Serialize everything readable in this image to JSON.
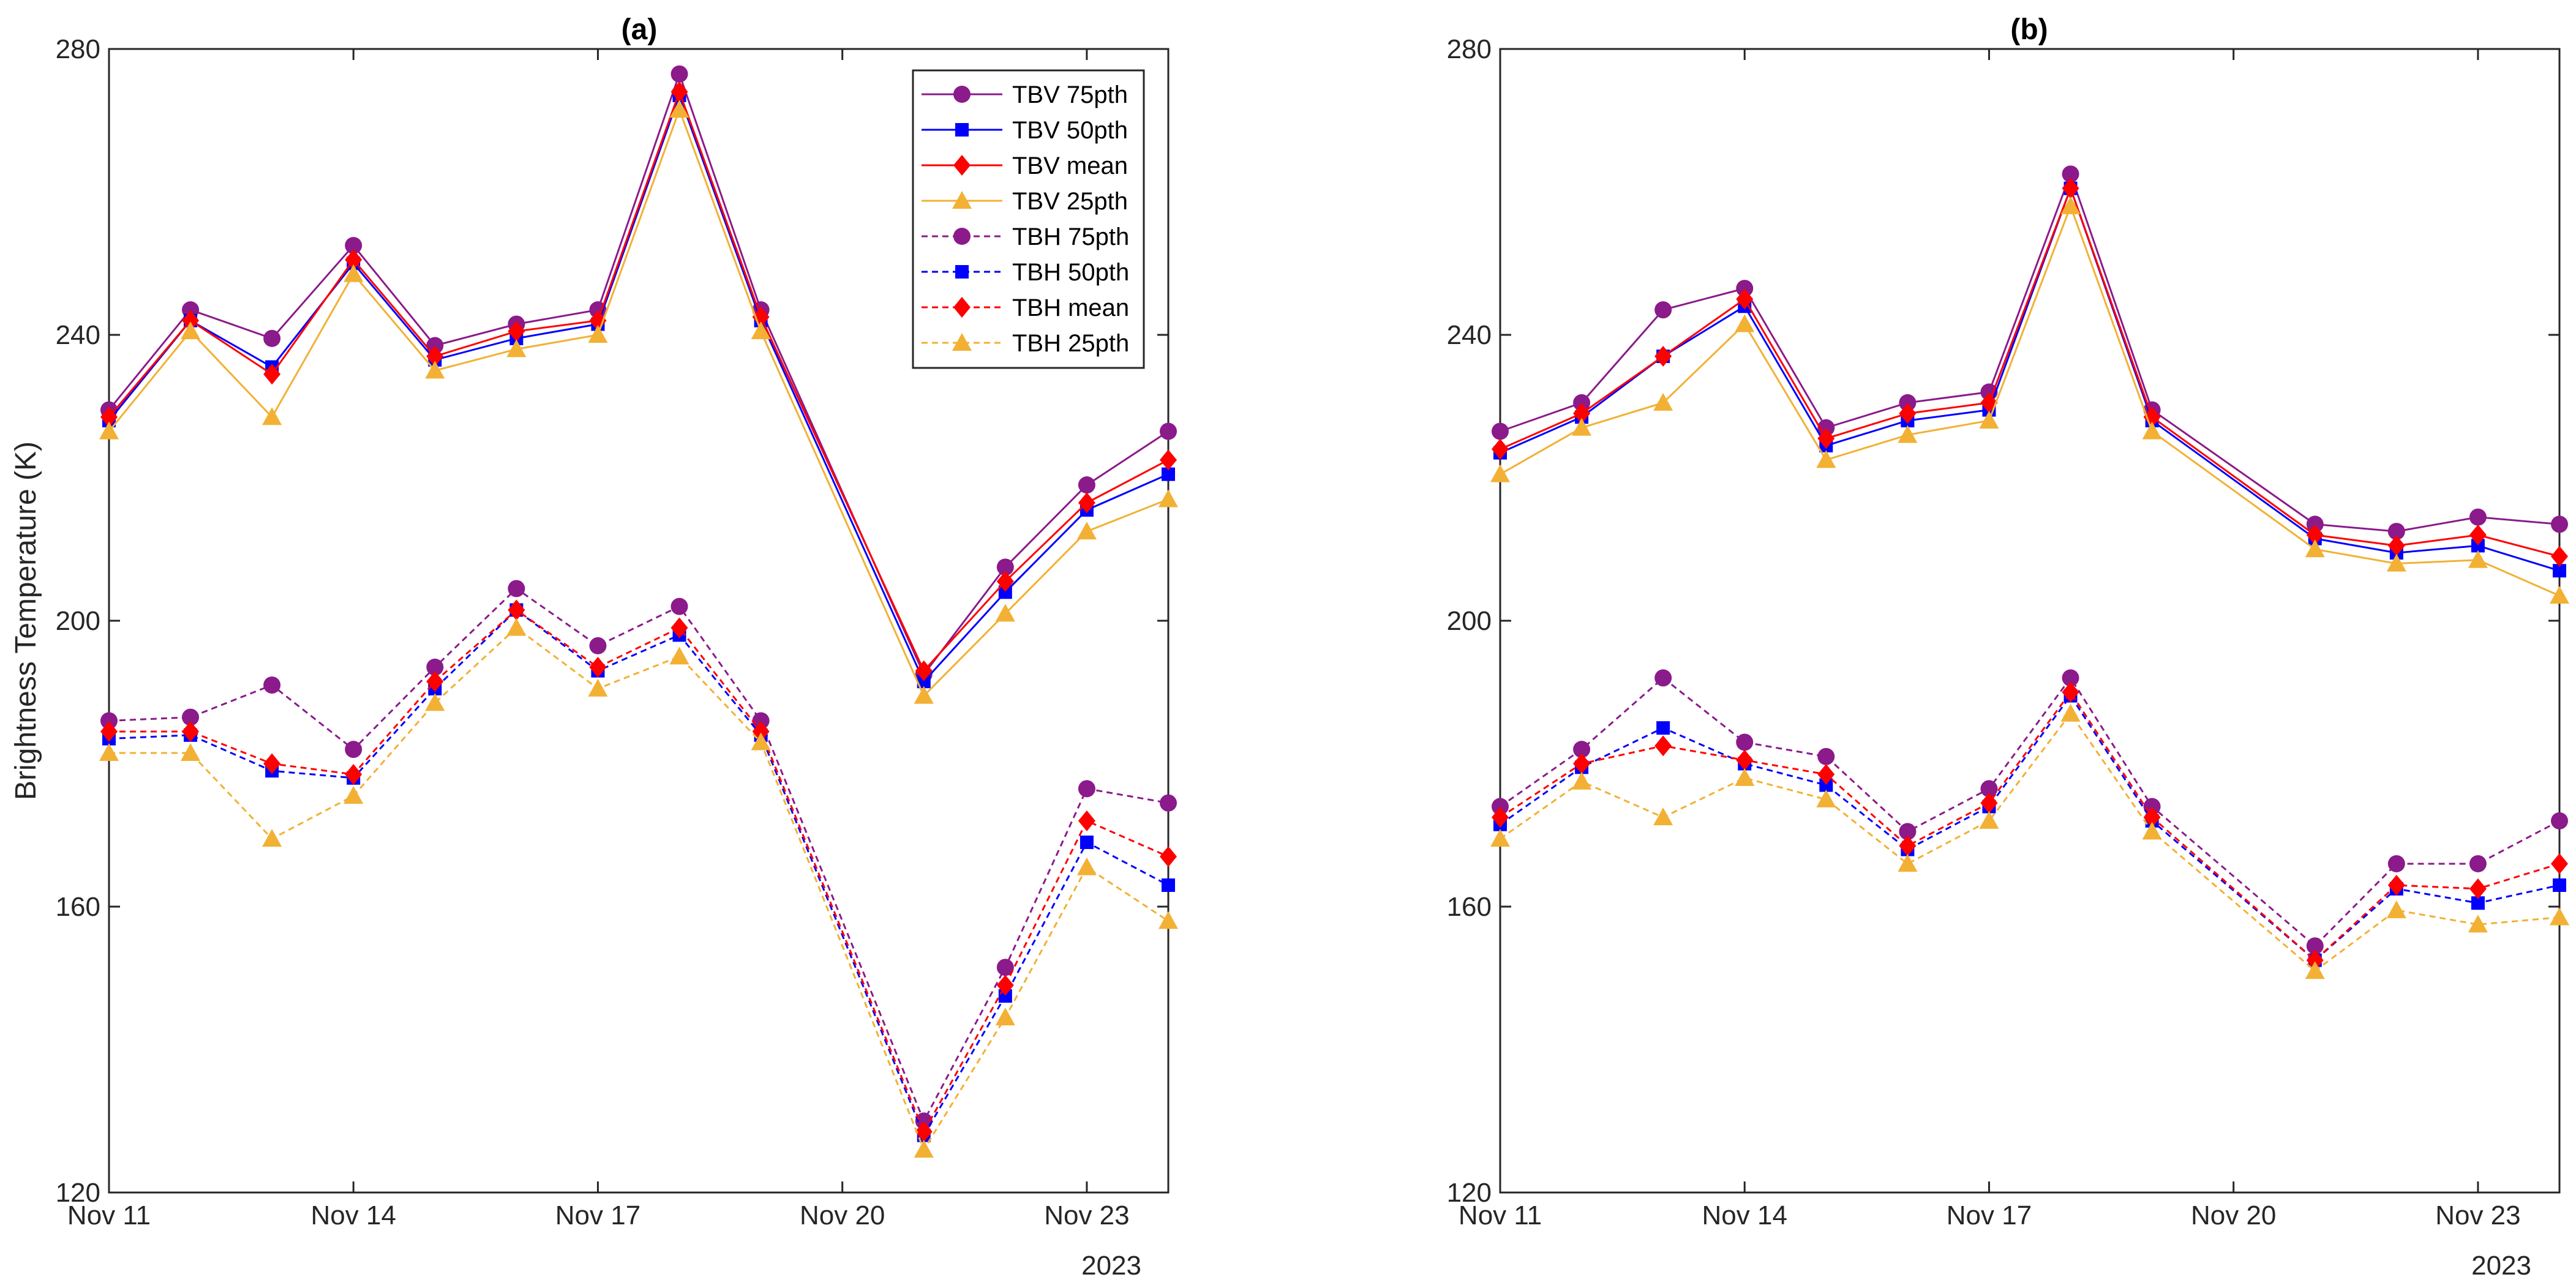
{
  "chart_data": [
    {
      "type": "line",
      "title": "(a)",
      "xlabel": "",
      "ylabel": "Brightness Temperature (K)",
      "ylim": [
        120,
        280
      ],
      "yticks": [
        120,
        160,
        200,
        240,
        280
      ],
      "xlim": [
        "2023-11-11",
        "2023-11-24"
      ],
      "xticks": [
        "Nov 11",
        "Nov 14",
        "Nov 17",
        "Nov 20",
        "Nov 23"
      ],
      "x_secondary_label": "2023",
      "grid": false,
      "x": [
        "Nov 11",
        "Nov 12",
        "Nov 13",
        "Nov 14",
        "Nov 15",
        "Nov 16",
        "Nov 17",
        "Nov 18",
        "Nov 19",
        "Nov 21",
        "Nov 22",
        "Nov 23",
        "Nov 24"
      ],
      "series": [
        {
          "name": "TBV 75pth",
          "values": [
            229.5,
            243.5,
            239.5,
            252.5,
            238.5,
            241.5,
            243.5,
            276.5,
            243.5,
            192.5,
            207.5,
            219.0,
            226.5
          ]
        },
        {
          "name": "TBV 50pth",
          "values": [
            228.0,
            242.0,
            235.5,
            250.0,
            236.5,
            239.5,
            241.5,
            273.5,
            242.0,
            191.5,
            204.0,
            215.5,
            220.5
          ]
        },
        {
          "name": "TBV mean",
          "values": [
            228.5,
            242.0,
            234.5,
            250.5,
            237.0,
            240.5,
            242.0,
            274.0,
            242.5,
            193.0,
            205.5,
            216.5,
            222.5
          ]
        },
        {
          "name": "TBV 25pth",
          "values": [
            226.5,
            240.5,
            228.5,
            248.5,
            235.0,
            238.0,
            240.0,
            271.5,
            240.5,
            189.5,
            201.0,
            212.5,
            217.0
          ]
        },
        {
          "name": "TBH 75pth",
          "values": [
            186.0,
            186.5,
            191.0,
            182.0,
            193.5,
            204.5,
            196.5,
            202.0,
            186.0,
            130.0,
            151.5,
            176.5,
            174.5
          ]
        },
        {
          "name": "TBH 50pth",
          "values": [
            183.5,
            184.0,
            179.0,
            178.0,
            190.5,
            201.5,
            193.0,
            198.0,
            184.0,
            128.0,
            147.5,
            169.0,
            163.0
          ]
        },
        {
          "name": "TBH mean",
          "values": [
            184.5,
            184.5,
            180.0,
            178.5,
            191.5,
            201.5,
            193.5,
            199.0,
            184.5,
            128.5,
            149.0,
            172.0,
            167.0
          ]
        },
        {
          "name": "TBH 25pth",
          "values": [
            181.5,
            181.5,
            169.5,
            175.5,
            188.5,
            199.0,
            190.5,
            195.0,
            183.0,
            126.0,
            144.5,
            165.5,
            158.0
          ]
        }
      ],
      "legend": {
        "position": "top-right",
        "entries": [
          "TBV 75pth",
          "TBV 50pth",
          "TBV mean",
          "TBV 25pth",
          "TBH 75pth",
          "TBH 50pth",
          "TBH mean",
          "TBH 25pth"
        ]
      }
    },
    {
      "type": "line",
      "title": "(b)",
      "xlabel": "",
      "ylabel": "",
      "ylim": [
        120,
        280
      ],
      "yticks": [
        120,
        160,
        200,
        240,
        280
      ],
      "xlim": [
        "2023-11-11",
        "2023-11-24"
      ],
      "xticks": [
        "Nov 11",
        "Nov 14",
        "Nov 17",
        "Nov 20",
        "Nov 23"
      ],
      "x_secondary_label": "2023",
      "grid": false,
      "x": [
        "Nov 11",
        "Nov 12",
        "Nov 13",
        "Nov 14",
        "Nov 15",
        "Nov 16",
        "Nov 17",
        "Nov 18",
        "Nov 19",
        "Nov 21",
        "Nov 22",
        "Nov 23",
        "Nov 24"
      ],
      "series": [
        {
          "name": "TBV 75pth",
          "values": [
            226.5,
            230.5,
            243.5,
            246.5,
            227.0,
            230.5,
            232.0,
            262.5,
            229.5,
            213.5,
            212.5,
            214.5,
            213.5
          ]
        },
        {
          "name": "TBV 50pth",
          "values": [
            223.5,
            228.5,
            237.0,
            244.0,
            224.5,
            228.0,
            229.5,
            260.5,
            228.0,
            211.5,
            209.5,
            210.5,
            207.0
          ]
        },
        {
          "name": "TBV mean",
          "values": [
            224.0,
            229.0,
            237.0,
            245.0,
            225.5,
            229.0,
            230.5,
            260.5,
            228.5,
            212.0,
            210.5,
            212.0,
            209.0
          ]
        },
        {
          "name": "TBV 25pth",
          "values": [
            220.5,
            227.0,
            230.5,
            241.5,
            222.5,
            226.0,
            228.0,
            258.0,
            226.5,
            210.0,
            208.0,
            208.5,
            203.5
          ]
        },
        {
          "name": "TBH 75pth",
          "values": [
            174.0,
            182.0,
            192.0,
            183.0,
            181.0,
            170.5,
            176.5,
            192.0,
            174.0,
            154.5,
            166.0,
            166.0,
            172.0
          ]
        },
        {
          "name": "TBH 50pth",
          "values": [
            171.5,
            179.5,
            185.0,
            180.0,
            177.0,
            168.0,
            174.0,
            189.5,
            172.0,
            152.5,
            162.5,
            160.5,
            163.0
          ]
        },
        {
          "name": "TBH mean",
          "values": [
            172.5,
            180.0,
            182.5,
            180.5,
            178.5,
            168.5,
            174.5,
            190.0,
            172.5,
            152.5,
            163.0,
            162.5,
            166.0
          ]
        },
        {
          "name": "TBH 25pth",
          "values": [
            169.5,
            177.5,
            172.5,
            178.0,
            175.0,
            166.0,
            172.0,
            187.0,
            170.5,
            151.0,
            159.5,
            157.5,
            158.5
          ]
        }
      ]
    }
  ],
  "series_styles": [
    {
      "color": "#8B1A8B",
      "marker": "circle",
      "dash": "solid"
    },
    {
      "color": "#0000FF",
      "marker": "square",
      "dash": "solid"
    },
    {
      "color": "#FF0000",
      "marker": "diamond",
      "dash": "solid"
    },
    {
      "color": "#F2B134",
      "marker": "triangle",
      "dash": "solid"
    },
    {
      "color": "#8B1A8B",
      "marker": "circle",
      "dash": "dashed"
    },
    {
      "color": "#0000FF",
      "marker": "square",
      "dash": "dashed"
    },
    {
      "color": "#FF0000",
      "marker": "diamond",
      "dash": "dashed"
    },
    {
      "color": "#F2B134",
      "marker": "triangle",
      "dash": "dashed"
    }
  ]
}
